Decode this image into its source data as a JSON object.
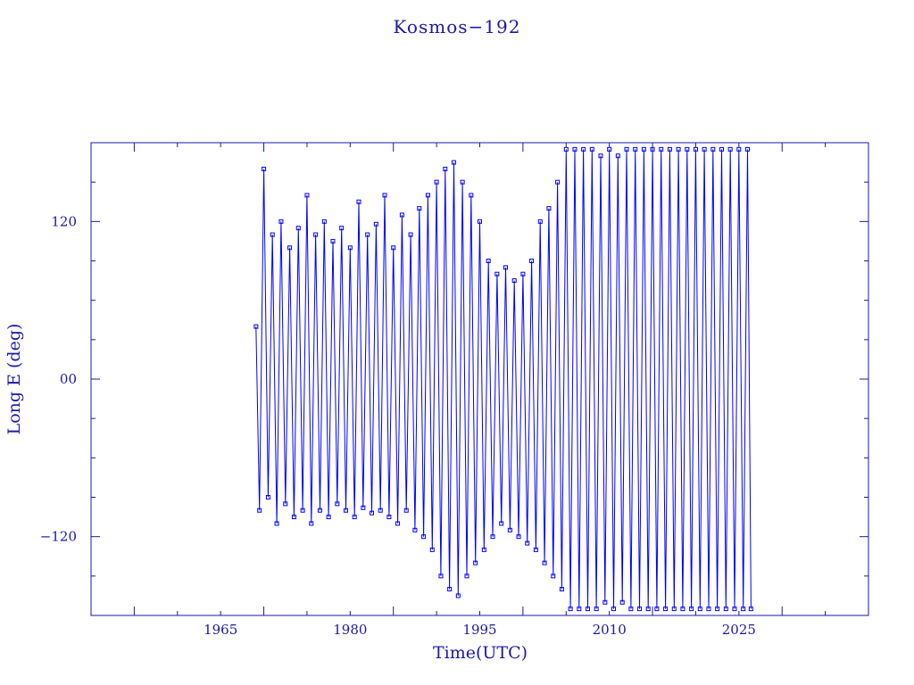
{
  "chart_data": {
    "type": "line",
    "title": "Kosmos−192",
    "xlabel": "Time(UTC)",
    "ylabel": "Long E (deg)",
    "xlim": [
      1950,
      2040
    ],
    "ylim": [
      -180,
      180
    ],
    "x_ticks": [
      {
        "value": 1965,
        "label": "1965"
      },
      {
        "value": 1980,
        "label": "1980"
      },
      {
        "value": 1995,
        "label": "1995"
      },
      {
        "value": 2010,
        "label": "2010"
      },
      {
        "value": 2025,
        "label": "2025"
      }
    ],
    "y_ticks": [
      {
        "value": 120,
        "label": "120"
      },
      {
        "value": 0,
        "label": "00"
      },
      {
        "value": -120,
        "label": "−120"
      }
    ],
    "grid": false,
    "series_color": "#0000ff",
    "axis_color": "#1a1aa8",
    "x_range_of_data": [
      1969.1,
      2026.4
    ],
    "series": [
      {
        "x": [
          1969.1,
          1969.5,
          1970.0,
          1970.5,
          1971.0,
          1971.5,
          1972.0,
          1972.5,
          1973.0,
          1973.5,
          1974.0,
          1974.5,
          1975.0,
          1975.5,
          1976.0,
          1976.5,
          1977.0,
          1977.5,
          1978.0,
          1978.5,
          1979.0,
          1979.5,
          1980.0,
          1980.5,
          1981.0,
          1981.5,
          1982.0,
          1982.5,
          1983.0,
          1983.5,
          1984.0,
          1984.5,
          1985.0,
          1985.5,
          1986.0,
          1986.5,
          1987.0,
          1987.5,
          1988.0,
          1988.5,
          1989.0,
          1989.5,
          1990.0,
          1990.5,
          1991.0,
          1991.5,
          1992.0,
          1992.5,
          1993.0,
          1993.5,
          1994.0,
          1994.5,
          1995.0,
          1995.5,
          1996.0,
          1996.5,
          1997.0,
          1997.5,
          1998.0,
          1998.5,
          1999.0,
          1999.5,
          2000.0,
          2000.5,
          2001.0,
          2001.5,
          2002.0,
          2002.5,
          2003.0,
          2003.5,
          2004.0,
          2004.5,
          2005.0,
          2005.5,
          2006.0,
          2006.5,
          2007.0,
          2007.5,
          2008.0,
          2008.5,
          2009.0,
          2009.5,
          2010.0,
          2010.5,
          2011.0,
          2011.5,
          2012.0,
          2012.5,
          2013.0,
          2013.5,
          2014.0,
          2014.5,
          2015.0,
          2015.5,
          2016.0,
          2016.5,
          2017.0,
          2017.5,
          2018.0,
          2018.5,
          2019.0,
          2019.5,
          2020.0,
          2020.5,
          2021.0,
          2021.5,
          2022.0,
          2022.5,
          2023.0,
          2023.5,
          2024.0,
          2024.5,
          2025.0,
          2025.5,
          2026.0,
          2026.4
        ],
        "y": [
          40,
          -100,
          160,
          -90,
          110,
          -110,
          120,
          -95,
          100,
          -105,
          115,
          -100,
          140,
          -110,
          110,
          -100,
          120,
          -105,
          105,
          -95,
          115,
          -100,
          100,
          -105,
          135,
          -98,
          110,
          -102,
          118,
          -100,
          140,
          -105,
          100,
          -110,
          125,
          -100,
          110,
          -115,
          130,
          -120,
          140,
          -130,
          150,
          -150,
          160,
          -160,
          165,
          -165,
          150,
          -150,
          140,
          -140,
          120,
          -130,
          90,
          -120,
          80,
          -110,
          85,
          -115,
          75,
          -120,
          80,
          -125,
          90,
          -130,
          120,
          -140,
          130,
          -150,
          150,
          -160,
          175,
          -175,
          175,
          -175,
          175,
          -175,
          175,
          -175,
          170,
          -170,
          175,
          -175,
          170,
          -170,
          175,
          -175,
          175,
          -175,
          175,
          -175,
          175,
          -175,
          175,
          -175,
          175,
          -175,
          175,
          -175,
          175,
          -175,
          175,
          -175,
          175,
          -175,
          175,
          -175,
          175,
          -175,
          175,
          -175,
          175,
          -175,
          175,
          -175
        ]
      }
    ]
  }
}
